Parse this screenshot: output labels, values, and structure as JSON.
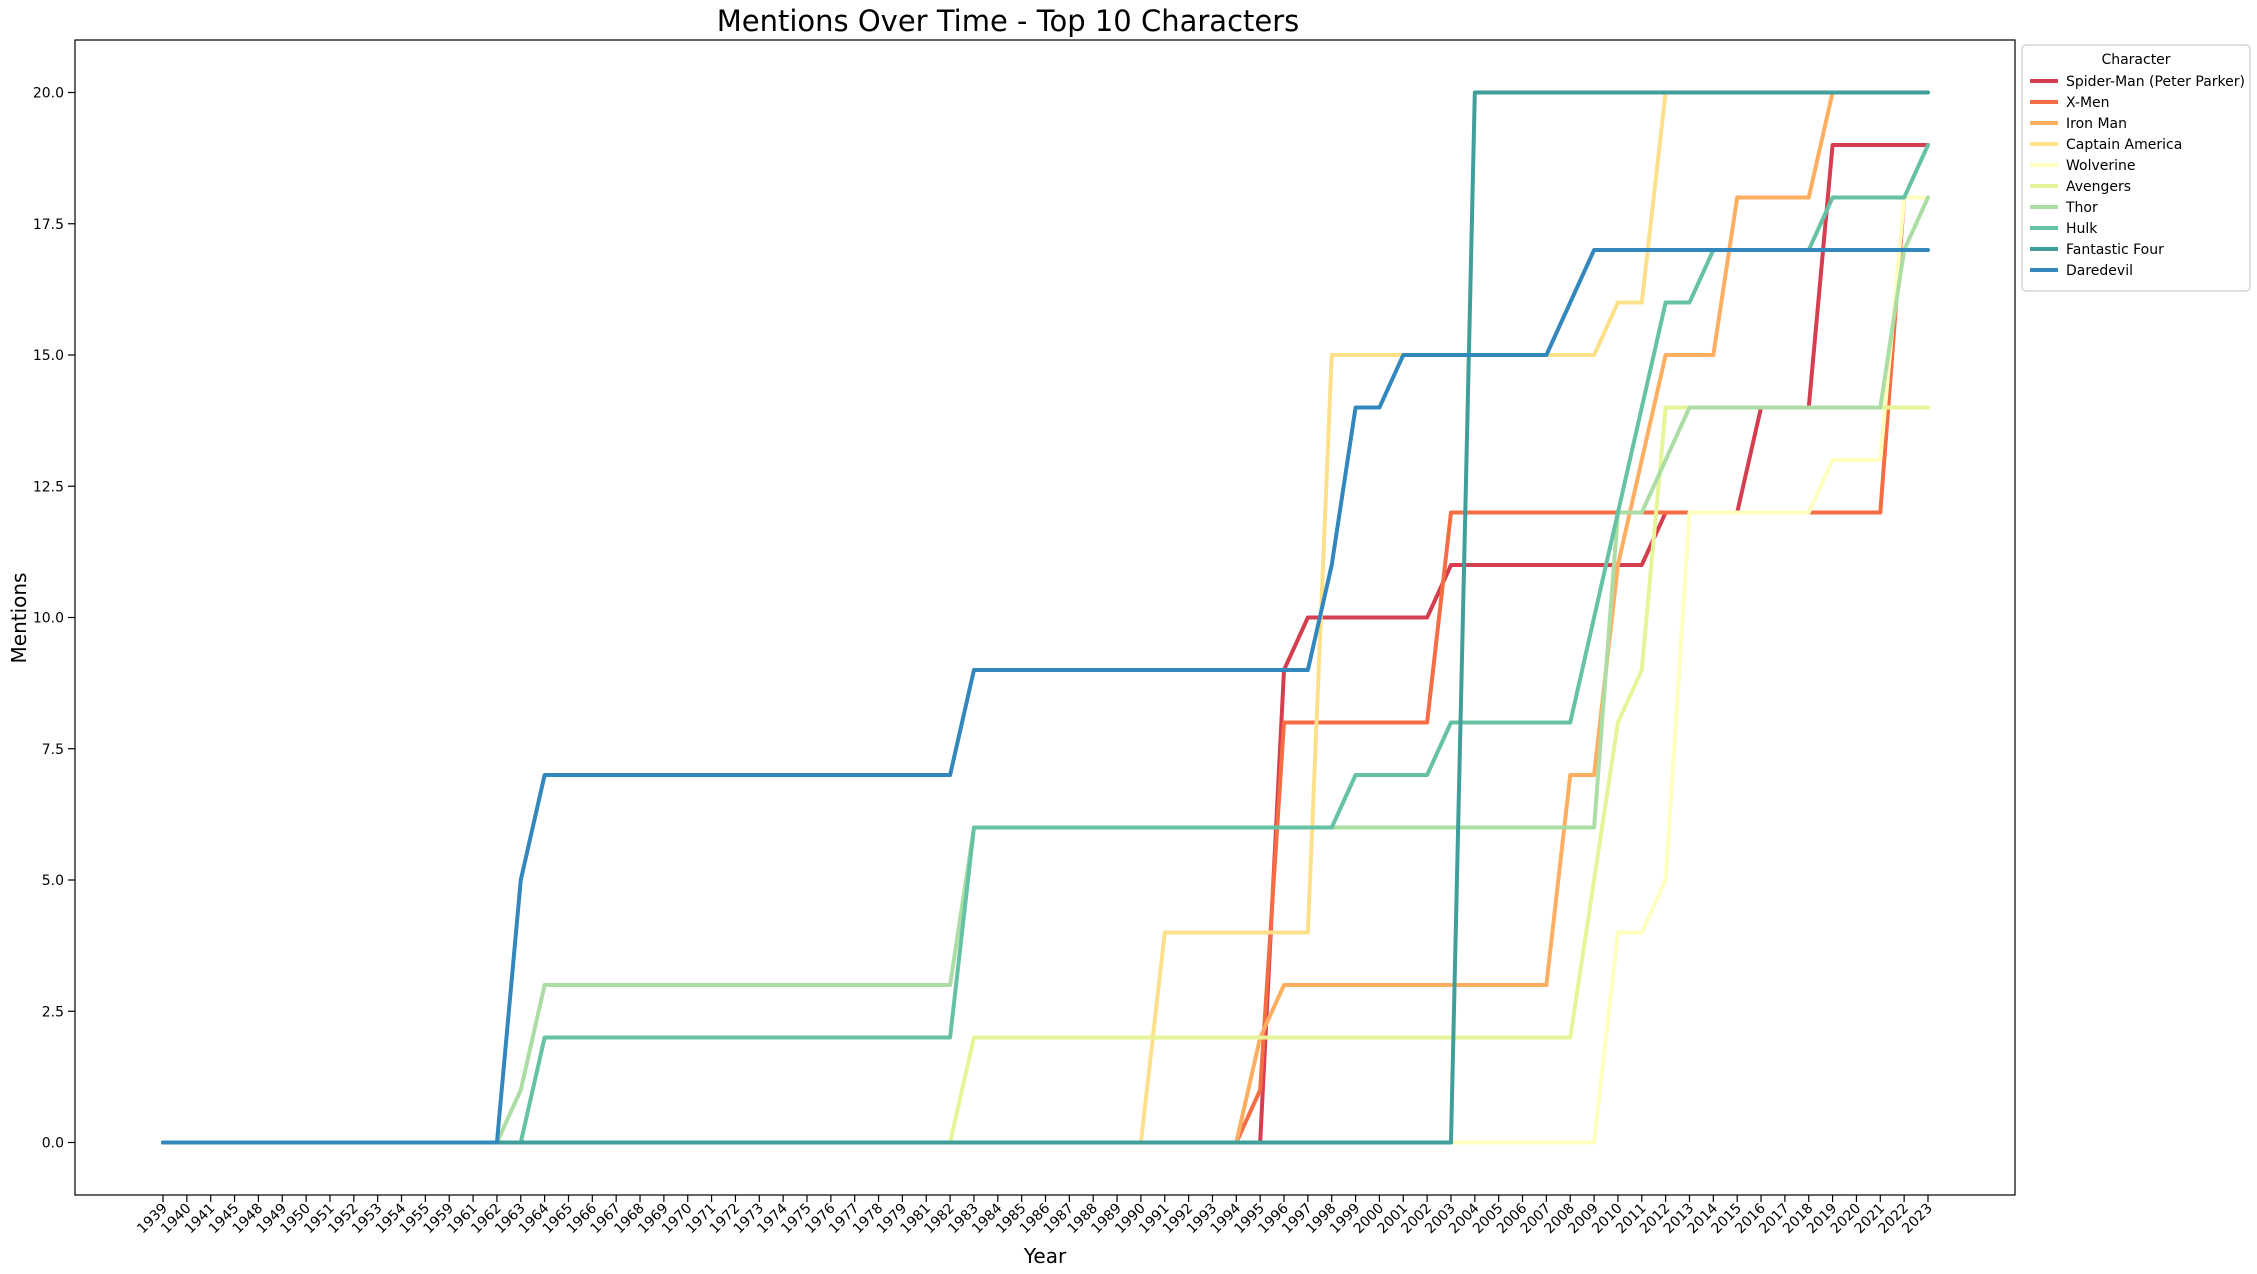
{
  "chart_data": {
    "type": "line",
    "title": "Mentions Over Time - Top 10 Characters",
    "xlabel": "Year",
    "ylabel": "Mentions",
    "ylim": [
      -1,
      21
    ],
    "yticks": [
      "0.0",
      "2.5",
      "5.0",
      "7.5",
      "10.0",
      "12.5",
      "15.0",
      "17.5",
      "20.0"
    ],
    "grid": false,
    "legend": {
      "title": "Character",
      "placement": "outside-right-top"
    },
    "x": [
      "1939",
      "1940",
      "1941",
      "1945",
      "1948",
      "1949",
      "1950",
      "1951",
      "1952",
      "1953",
      "1954",
      "1955",
      "1959",
      "1961",
      "1962",
      "1963",
      "1964",
      "1965",
      "1966",
      "1967",
      "1968",
      "1969",
      "1970",
      "1971",
      "1972",
      "1973",
      "1974",
      "1975",
      "1976",
      "1977",
      "1978",
      "1979",
      "1981",
      "1982",
      "1983",
      "1984",
      "1985",
      "1986",
      "1987",
      "1988",
      "1989",
      "1990",
      "1991",
      "1992",
      "1993",
      "1994",
      "1995",
      "1996",
      "1997",
      "1998",
      "1999",
      "2000",
      "2001",
      "2002",
      "2003",
      "2004",
      "2005",
      "2006",
      "2007",
      "2008",
      "2009",
      "2010",
      "2011",
      "2012",
      "2013",
      "2014",
      "2015",
      "2016",
      "2017",
      "2018",
      "2019",
      "2020",
      "2021",
      "2022",
      "2023"
    ],
    "series": [
      {
        "name": "Spider-Man (Peter Parker)",
        "color": "#d53e4f",
        "values": [
          0,
          0,
          0,
          0,
          0,
          0,
          0,
          0,
          0,
          0,
          0,
          0,
          0,
          0,
          0,
          0,
          0,
          0,
          0,
          0,
          0,
          0,
          0,
          0,
          0,
          0,
          0,
          0,
          0,
          0,
          0,
          0,
          0,
          0,
          0,
          0,
          0,
          0,
          0,
          0,
          0,
          0,
          0,
          0,
          0,
          0,
          0,
          9,
          10,
          10,
          10,
          10,
          10,
          10,
          11,
          11,
          11,
          11,
          11,
          11,
          11,
          11,
          11,
          12,
          12,
          12,
          12,
          14,
          14,
          14,
          19,
          19,
          19,
          19,
          19
        ]
      },
      {
        "name": "X-Men",
        "color": "#f46d43",
        "values": [
          0,
          0,
          0,
          0,
          0,
          0,
          0,
          0,
          0,
          0,
          0,
          0,
          0,
          0,
          0,
          0,
          0,
          0,
          0,
          0,
          0,
          0,
          0,
          0,
          0,
          0,
          0,
          0,
          0,
          0,
          0,
          0,
          0,
          0,
          0,
          0,
          0,
          0,
          0,
          0,
          0,
          0,
          0,
          0,
          0,
          0,
          1,
          8,
          8,
          8,
          8,
          8,
          8,
          8,
          12,
          12,
          12,
          12,
          12,
          12,
          12,
          12,
          12,
          12,
          12,
          12,
          12,
          12,
          12,
          12,
          12,
          12,
          12,
          18,
          18
        ]
      },
      {
        "name": "Iron Man",
        "color": "#fdae61",
        "values": [
          0,
          0,
          0,
          0,
          0,
          0,
          0,
          0,
          0,
          0,
          0,
          0,
          0,
          0,
          0,
          0,
          0,
          0,
          0,
          0,
          0,
          0,
          0,
          0,
          0,
          0,
          0,
          0,
          0,
          0,
          0,
          0,
          0,
          0,
          0,
          0,
          0,
          0,
          0,
          0,
          0,
          0,
          0,
          0,
          0,
          0,
          2,
          3,
          3,
          3,
          3,
          3,
          3,
          3,
          3,
          3,
          3,
          3,
          3,
          7,
          7,
          11,
          13,
          15,
          15,
          15,
          18,
          18,
          18,
          18,
          20,
          20,
          20,
          20,
          20
        ]
      },
      {
        "name": "Captain America",
        "color": "#fee08b",
        "values": [
          0,
          0,
          0,
          0,
          0,
          0,
          0,
          0,
          0,
          0,
          0,
          0,
          0,
          0,
          0,
          0,
          0,
          0,
          0,
          0,
          0,
          0,
          0,
          0,
          0,
          0,
          0,
          0,
          0,
          0,
          0,
          0,
          0,
          0,
          0,
          0,
          0,
          0,
          0,
          0,
          0,
          0,
          4,
          4,
          4,
          4,
          4,
          4,
          4,
          15,
          15,
          15,
          15,
          15,
          15,
          15,
          15,
          15,
          15,
          15,
          15,
          16,
          16,
          20,
          20,
          20,
          20,
          20,
          20,
          20,
          20,
          20,
          20,
          20,
          20
        ]
      },
      {
        "name": "Wolverine",
        "color": "#ffffbf",
        "values": [
          0,
          0,
          0,
          0,
          0,
          0,
          0,
          0,
          0,
          0,
          0,
          0,
          0,
          0,
          0,
          0,
          0,
          0,
          0,
          0,
          0,
          0,
          0,
          0,
          0,
          0,
          0,
          0,
          0,
          0,
          0,
          0,
          0,
          0,
          0,
          0,
          0,
          0,
          0,
          0,
          0,
          0,
          0,
          0,
          0,
          0,
          0,
          0,
          0,
          0,
          0,
          0,
          0,
          0,
          0,
          0,
          0,
          0,
          0,
          0,
          0,
          4,
          4,
          5,
          12,
          12,
          12,
          12,
          12,
          12,
          13,
          13,
          13,
          18,
          18
        ]
      },
      {
        "name": "Avengers",
        "color": "#e6f598",
        "values": [
          0,
          0,
          0,
          0,
          0,
          0,
          0,
          0,
          0,
          0,
          0,
          0,
          0,
          0,
          0,
          0,
          0,
          0,
          0,
          0,
          0,
          0,
          0,
          0,
          0,
          0,
          0,
          0,
          0,
          0,
          0,
          0,
          0,
          0,
          2,
          2,
          2,
          2,
          2,
          2,
          2,
          2,
          2,
          2,
          2,
          2,
          2,
          2,
          2,
          2,
          2,
          2,
          2,
          2,
          2,
          2,
          2,
          2,
          2,
          2,
          5,
          8,
          9,
          14,
          14,
          14,
          14,
          14,
          14,
          14,
          14,
          14,
          14,
          14,
          14
        ]
      },
      {
        "name": "Thor",
        "color": "#abdda4",
        "values": [
          0,
          0,
          0,
          0,
          0,
          0,
          0,
          0,
          0,
          0,
          0,
          0,
          0,
          0,
          0,
          1,
          3,
          3,
          3,
          3,
          3,
          3,
          3,
          3,
          3,
          3,
          3,
          3,
          3,
          3,
          3,
          3,
          3,
          3,
          6,
          6,
          6,
          6,
          6,
          6,
          6,
          6,
          6,
          6,
          6,
          6,
          6,
          6,
          6,
          6,
          6,
          6,
          6,
          6,
          6,
          6,
          6,
          6,
          6,
          6,
          6,
          12,
          12,
          13,
          14,
          14,
          14,
          14,
          14,
          14,
          14,
          14,
          14,
          17,
          18
        ]
      },
      {
        "name": "Hulk",
        "color": "#66c2a5",
        "values": [
          0,
          0,
          0,
          0,
          0,
          0,
          0,
          0,
          0,
          0,
          0,
          0,
          0,
          0,
          0,
          0,
          2,
          2,
          2,
          2,
          2,
          2,
          2,
          2,
          2,
          2,
          2,
          2,
          2,
          2,
          2,
          2,
          2,
          2,
          6,
          6,
          6,
          6,
          6,
          6,
          6,
          6,
          6,
          6,
          6,
          6,
          6,
          6,
          6,
          6,
          7,
          7,
          7,
          7,
          8,
          8,
          8,
          8,
          8,
          8,
          10,
          12,
          14,
          16,
          16,
          17,
          17,
          17,
          17,
          17,
          18,
          18,
          18,
          18,
          19
        ]
      },
      {
        "name": "Fantastic Four",
        "color": "#3f9f9a",
        "values": [
          0,
          0,
          0,
          0,
          0,
          0,
          0,
          0,
          0,
          0,
          0,
          0,
          0,
          0,
          0,
          0,
          0,
          0,
          0,
          0,
          0,
          0,
          0,
          0,
          0,
          0,
          0,
          0,
          0,
          0,
          0,
          0,
          0,
          0,
          0,
          0,
          0,
          0,
          0,
          0,
          0,
          0,
          0,
          0,
          0,
          0,
          0,
          0,
          0,
          0,
          0,
          0,
          0,
          0,
          0,
          20,
          20,
          20,
          20,
          20,
          20,
          20,
          20,
          20,
          20,
          20,
          20,
          20,
          20,
          20,
          20,
          20,
          20,
          20,
          20
        ]
      },
      {
        "name": "Daredevil",
        "color": "#3288bd",
        "values": [
          0,
          0,
          0,
          0,
          0,
          0,
          0,
          0,
          0,
          0,
          0,
          0,
          0,
          0,
          0,
          5,
          7,
          7,
          7,
          7,
          7,
          7,
          7,
          7,
          7,
          7,
          7,
          7,
          7,
          7,
          7,
          7,
          7,
          7,
          9,
          9,
          9,
          9,
          9,
          9,
          9,
          9,
          9,
          9,
          9,
          9,
          9,
          9,
          9,
          11,
          14,
          14,
          15,
          15,
          15,
          15,
          15,
          15,
          15,
          16,
          17,
          17,
          17,
          17,
          17,
          17,
          17,
          17,
          17,
          17,
          17,
          17,
          17,
          17,
          17
        ]
      }
    ]
  }
}
